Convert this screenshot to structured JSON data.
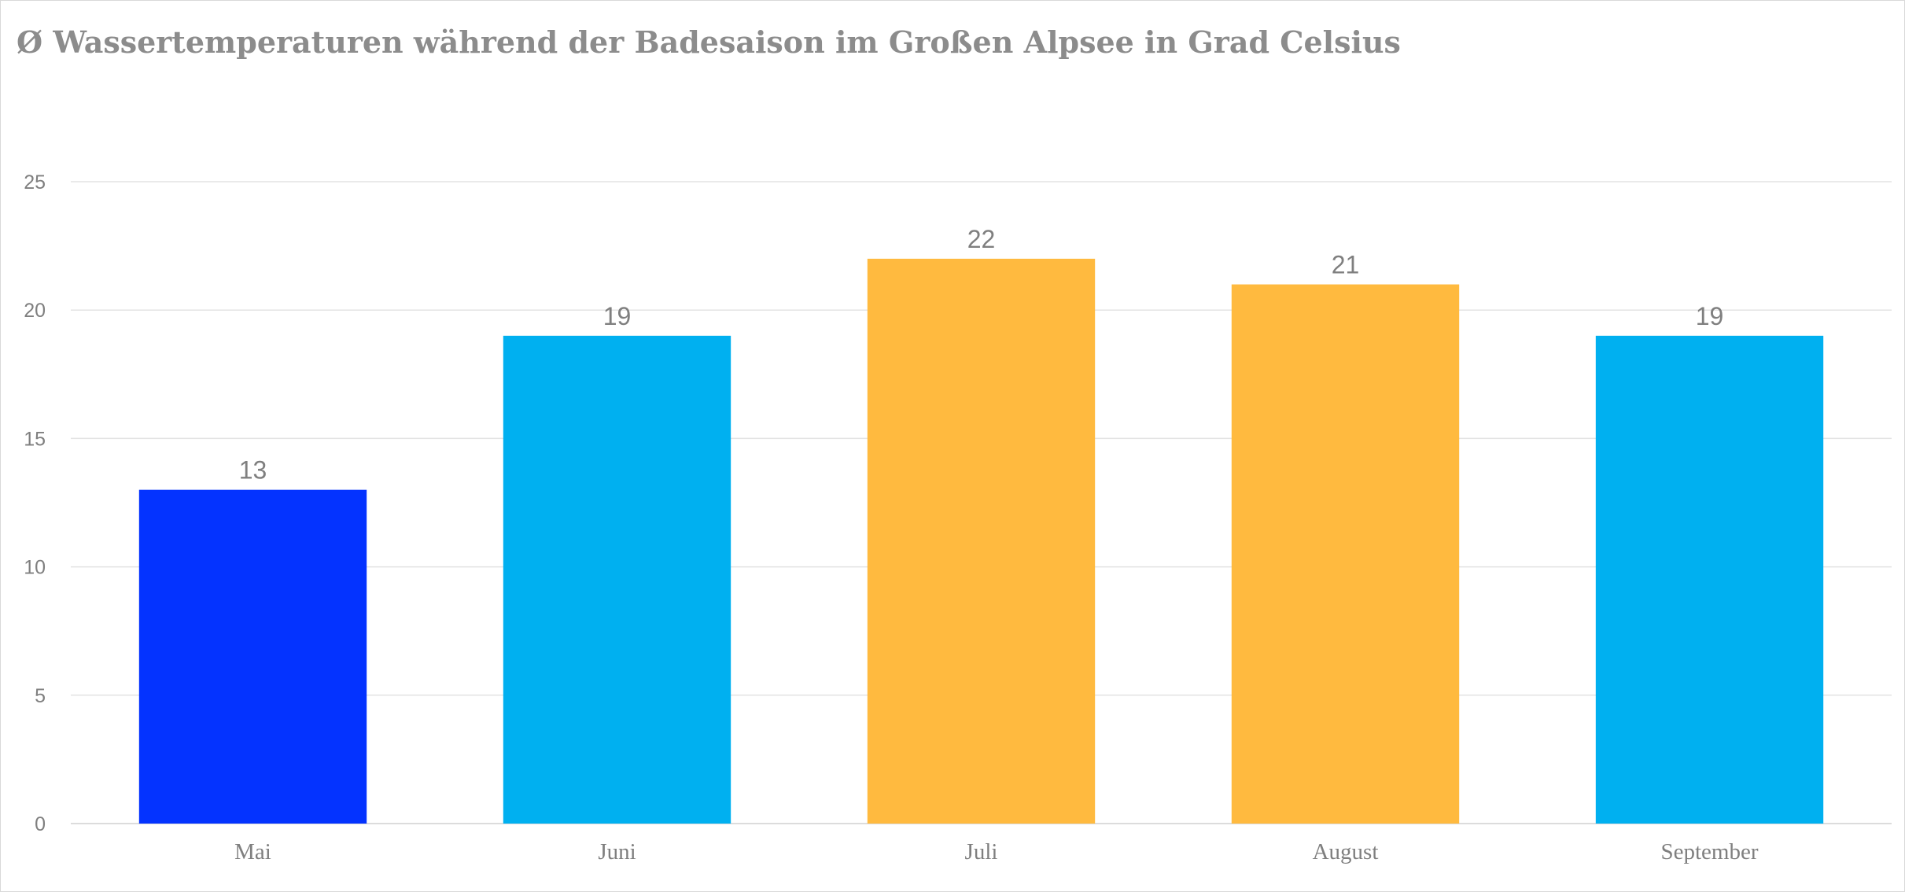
{
  "chart_data": {
    "type": "bar",
    "title": "Ø Wassertemperaturen während der Badesaison im Großen Alpsee in Grad Celsius",
    "categories": [
      "Mai",
      "Juni",
      "Juli",
      "August",
      "September"
    ],
    "values": [
      13,
      19,
      22,
      21,
      19
    ],
    "bar_colors": [
      "#0433FF",
      "#00B0F0",
      "#FFBA3F",
      "#FFBA3F",
      "#00B0F0"
    ],
    "data_labels": [
      "13",
      "19",
      "22",
      "21",
      "19"
    ],
    "y_ticks": [
      0,
      5,
      10,
      15,
      20,
      25
    ],
    "ylim": [
      0,
      25
    ],
    "xlabel": "",
    "ylabel": "",
    "grid": true,
    "legend": "none"
  }
}
